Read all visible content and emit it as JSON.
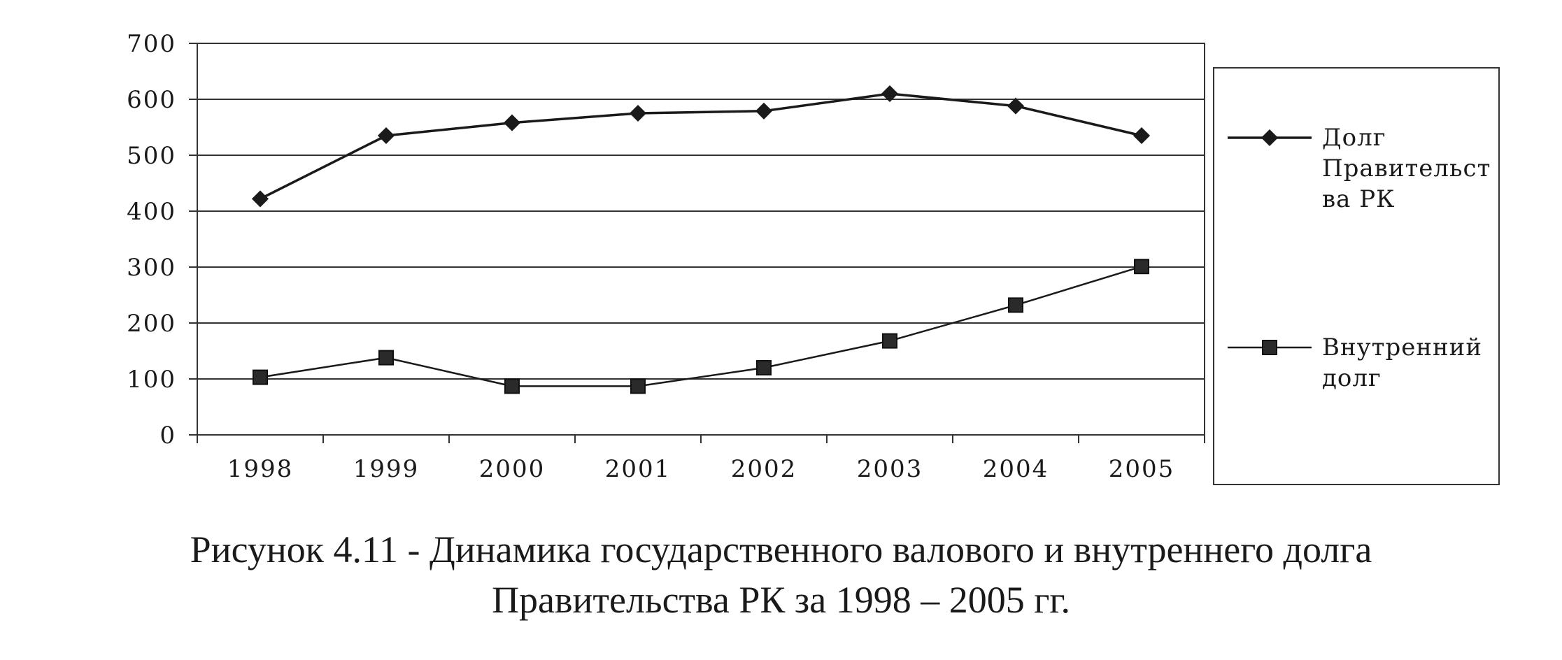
{
  "chart_data": {
    "type": "line",
    "title": "",
    "xlabel": "",
    "ylabel": "",
    "categories": [
      "1998",
      "1999",
      "2000",
      "2001",
      "2002",
      "2003",
      "2004",
      "2005"
    ],
    "ylim": [
      0,
      700
    ],
    "yticks": [
      0,
      100,
      200,
      300,
      400,
      500,
      600,
      700
    ],
    "grid": "horizontal",
    "legend_position": "right",
    "series": [
      {
        "name_lines": [
          "Долг",
          "Правительст",
          "ва РК"
        ],
        "marker": "diamond",
        "color": "#1a1a1a",
        "values": [
          422,
          535,
          558,
          575,
          579,
          610,
          588,
          535
        ]
      },
      {
        "name_lines": [
          "Внутренний",
          "долг"
        ],
        "marker": "square",
        "color": "#1a1a1a",
        "values": [
          103,
          138,
          87,
          87,
          120,
          168,
          232,
          301
        ]
      }
    ]
  },
  "caption": {
    "line1": "Рисунок 4.11 - Динамика государственного валового и внутреннего долга",
    "line2": "Правительства РК за 1998 – 2005 гг."
  }
}
